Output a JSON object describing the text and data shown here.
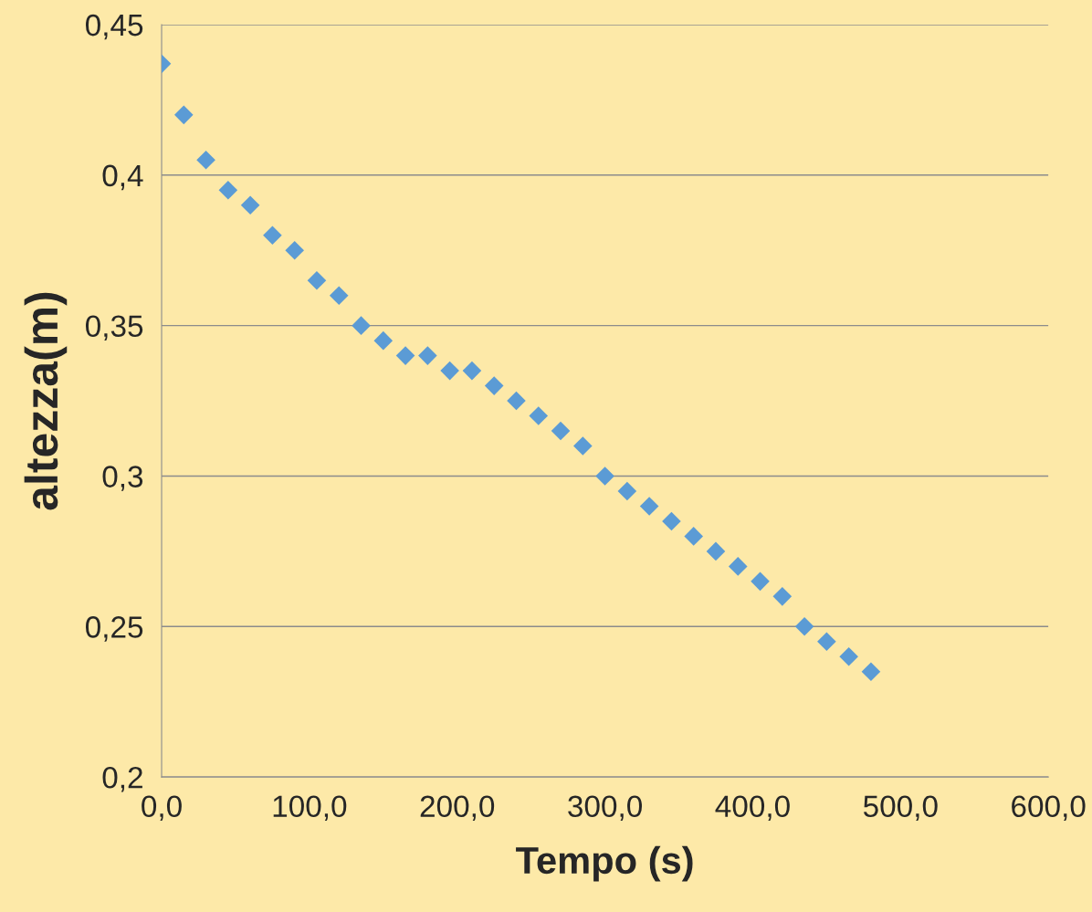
{
  "chart_data": {
    "type": "scatter",
    "xlabel": "Tempo (s)",
    "ylabel": "altezza(m)",
    "x": [
      0,
      15,
      30,
      45,
      60,
      75,
      90,
      105,
      120,
      135,
      150,
      165,
      180,
      195,
      210,
      225,
      240,
      255,
      270,
      285,
      300,
      315,
      330,
      345,
      360,
      375,
      390,
      405,
      420,
      435,
      450,
      465,
      480
    ],
    "series": [
      {
        "color": "#5b9bd5",
        "values": [
          0.437,
          0.42,
          0.405,
          0.395,
          0.39,
          0.38,
          0.375,
          0.365,
          0.36,
          0.35,
          0.345,
          0.34,
          0.34,
          0.335,
          0.335,
          0.33,
          0.325,
          0.32,
          0.315,
          0.31,
          0.3,
          0.295,
          0.29,
          0.285,
          0.28,
          0.275,
          0.27,
          0.265,
          0.26,
          0.25,
          0.245,
          0.24,
          0.235
        ]
      }
    ],
    "xlim": [
      0,
      600
    ],
    "xticks": [
      {
        "value": 0,
        "label": "0,0"
      },
      {
        "value": 100,
        "label": "100,0"
      },
      {
        "value": 200,
        "label": "200,0"
      },
      {
        "value": 300,
        "label": "300,0"
      },
      {
        "value": 400,
        "label": "400,0"
      },
      {
        "value": 500,
        "label": "500,0"
      },
      {
        "value": 600,
        "label": "600,0"
      }
    ],
    "ylim": [
      0.2,
      0.45
    ],
    "yticks": [
      {
        "value": 0.2,
        "label": "0,2"
      },
      {
        "value": 0.25,
        "label": "0,25"
      },
      {
        "value": 0.3,
        "label": "0,3"
      },
      {
        "value": 0.35,
        "label": "0,35"
      },
      {
        "value": 0.4,
        "label": "0,4"
      },
      {
        "value": 0.45,
        "label": "0,45"
      }
    ],
    "grid": "y",
    "marker": "diamond"
  }
}
